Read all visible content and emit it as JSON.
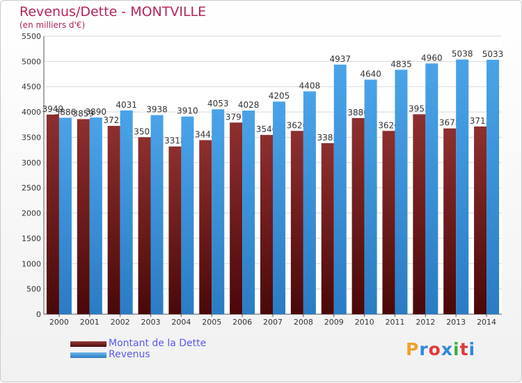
{
  "header": {
    "title": "Revenus/Dette - MONTVILLE",
    "subtitle": "(en milliers d'€)"
  },
  "logo": {
    "text": "Proxiti",
    "colors": [
      "#f0a030",
      "#2a8be0",
      "#e03a3a",
      "#2a8be0",
      "#3cb043",
      "#e03a3a",
      "#2a8be0"
    ]
  },
  "colors": {
    "dette": "#7b1d1d",
    "revenus": "#3e93db",
    "axis_text": "#333333",
    "grid": "#d8d8d8",
    "title": "#b5235f",
    "legend_text": "#5a5af0"
  },
  "chart_data": {
    "type": "bar",
    "title": "Revenus/Dette - MONTVILLE",
    "subtitle": "(en milliers d'€)",
    "categories": [
      "2000",
      "2001",
      "2002",
      "2003",
      "2004",
      "2005",
      "2006",
      "2007",
      "2008",
      "2009",
      "2010",
      "2011",
      "2012",
      "2013",
      "2014"
    ],
    "series": [
      {
        "name": "Montant de la Dette",
        "color": "#7b1d1d",
        "values": [
          3949,
          3859,
          3725,
          3501,
          3318,
          3443,
          3791,
          3546,
          3626,
          3383,
          3880,
          3626,
          3955,
          3675,
          3713
        ],
        "labels": [
          "3949",
          "3859",
          "3725",
          "3501",
          "3318",
          "3443",
          "3791",
          "3546",
          "3626",
          "3383",
          "3880",
          "3626",
          "3955",
          "3675",
          "3713"
        ]
      },
      {
        "name": "Revenus",
        "color": "#3e93db",
        "values": [
          3886,
          3890,
          4031,
          3938,
          3910,
          4053,
          4028,
          4205,
          4408,
          4937,
          4640,
          4835,
          4960,
          5038,
          5033
        ],
        "labels": [
          "3886",
          "3890",
          "4031",
          "3938",
          "3910",
          "4053",
          "4028",
          "4205",
          "4408",
          "4937",
          "4640",
          "4835",
          "4960",
          "5038",
          "5033"
        ]
      }
    ],
    "ylim": [
      0,
      5500
    ],
    "yticks": [
      0,
      500,
      1000,
      1500,
      2000,
      2500,
      3000,
      3500,
      4000,
      4500,
      5000,
      5500
    ],
    "xlabel": "",
    "ylabel": "",
    "grid": true,
    "legend": "bottom-left"
  }
}
